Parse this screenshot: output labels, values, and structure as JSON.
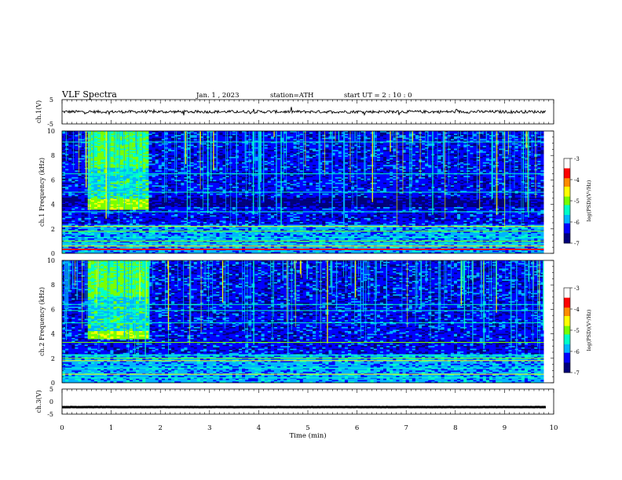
{
  "header": {
    "title": "VLF  Spectra",
    "date": "Jan.  1  , 2023",
    "station": "station=ATH",
    "start": "start  UT  =   2  : 10 : 0"
  },
  "colorbar_ticks": [
    "-3",
    "-4",
    "-5",
    "-6",
    "-7"
  ],
  "colorbar_label": "log(PSD)(V²/Hz)",
  "colors": [
    "#00007a",
    "#0000ff",
    "#00b4ff",
    "#00ffc8",
    "#78ff00",
    "#ffff00",
    "#ff8c00",
    "#ff0000",
    "#ffffff"
  ],
  "chart_data": [
    {
      "id": "ch1-voltage",
      "type": "line",
      "ylabel": "ch.1(V)",
      "ylim": [
        -5,
        5
      ],
      "yticks": [
        "5",
        "-5"
      ],
      "series": [
        {
          "baseline": 0,
          "noise_amplitude": 0.6
        }
      ]
    },
    {
      "id": "ch1-spectrogram",
      "type": "heatmap",
      "ylabel": "ch.1  Frequency  (kHz)",
      "ylim": [
        0,
        10
      ],
      "yticks": [
        "0",
        "2",
        "4",
        "6",
        "8",
        "10"
      ],
      "xlim": [
        0,
        10
      ],
      "data_end_min": 9.8,
      "clim": [
        -7,
        -3
      ],
      "features": [
        {
          "name": "broadband burst",
          "t_start_min": 0.55,
          "t_end_min": 1.75,
          "f_min_khz": 3.6,
          "f_max_khz": 10
        },
        {
          "name": "strong band",
          "t_start_min": 0.55,
          "t_end_min": 1.75,
          "f_min_khz": 3.6,
          "f_max_khz": 4.4
        },
        {
          "name": "quiet band",
          "f_min_khz": 3.8,
          "f_max_khz": 4.6
        },
        {
          "name": "low-frequency band",
          "f_min_khz": 0,
          "f_max_khz": 2.3
        }
      ]
    },
    {
      "id": "ch2-spectrogram",
      "type": "heatmap",
      "ylabel": "ch.2  Frequency  (kHz)",
      "ylim": [
        0,
        10
      ],
      "yticks": [
        "0",
        "2",
        "4",
        "6",
        "8",
        "10"
      ],
      "xlim": [
        0,
        10
      ],
      "data_end_min": 9.8,
      "clim": [
        -7,
        -3
      ],
      "features": [
        {
          "name": "broadband burst",
          "t_start_min": 0.55,
          "t_end_min": 1.75,
          "f_min_khz": 3.6,
          "f_max_khz": 10
        },
        {
          "name": "strong band",
          "t_start_min": 0.55,
          "t_end_min": 1.75,
          "f_min_khz": 3.6,
          "f_max_khz": 4.2
        },
        {
          "name": "low-frequency band",
          "f_min_khz": 0,
          "f_max_khz": 2.3
        }
      ]
    },
    {
      "id": "ch3-voltage",
      "type": "line",
      "ylabel": "ch.3(V)",
      "ylim": [
        -5,
        5
      ],
      "yticks": [
        "5",
        "0",
        "-5"
      ],
      "xlabel": "Time  (min)",
      "xlim": [
        0,
        10
      ],
      "xticks": [
        "0",
        "1",
        "2",
        "3",
        "4",
        "5",
        "6",
        "7",
        "8",
        "9",
        "10"
      ],
      "series": [
        {
          "baseline": -2.2,
          "noise_amplitude": 0.05
        }
      ]
    }
  ]
}
